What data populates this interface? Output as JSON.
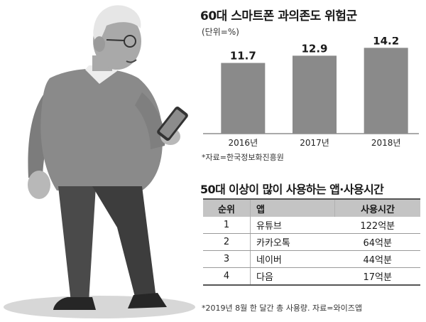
{
  "chart_data": {
    "type": "bar",
    "title": "60대 스마트폰 과의존도 위험군",
    "subtitle": "(단위=%)",
    "categories": [
      "2016년",
      "2017년",
      "2018년"
    ],
    "values": [
      11.7,
      12.9,
      14.2
    ],
    "value_labels": [
      "11.7",
      "12.9",
      "14.2"
    ],
    "ylim": [
      0,
      16
    ],
    "grid": false,
    "bar_color": "#8a8a8a",
    "source": "*자료=한국정보화진흥원"
  },
  "app_table": {
    "title": "50대 이상이 많이 사용하는 앱·사용시간",
    "headers": [
      "순위",
      "앱",
      "사용시간"
    ],
    "rows": [
      {
        "rank": "1",
        "app": "유튜브",
        "time": "122억분"
      },
      {
        "rank": "2",
        "app": "카카오톡",
        "time": "64억분"
      },
      {
        "rank": "3",
        "app": "네이버",
        "time": "44억분"
      },
      {
        "rank": "4",
        "app": "다음",
        "time": "17억분"
      }
    ],
    "source": "*2019년 8월 한 달간 총 사용량. 자료=와이즈앱"
  }
}
